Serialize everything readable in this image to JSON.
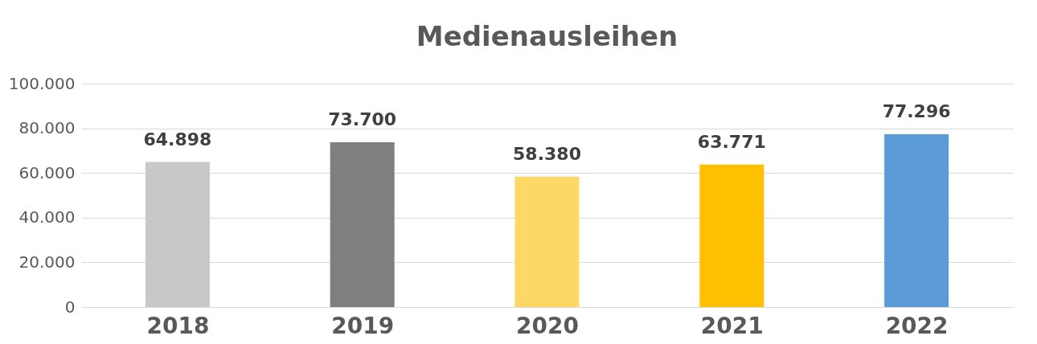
{
  "chart_data": {
    "type": "bar",
    "title": "Medienausleihen",
    "categories": [
      "2018",
      "2019",
      "2020",
      "2021",
      "2022"
    ],
    "values": [
      64898,
      73700,
      58380,
      63771,
      77296
    ],
    "value_labels": [
      "64.898",
      "73.700",
      "58.380",
      "63.771",
      "77.296"
    ],
    "colors": [
      "#c8c8c8",
      "#7f7f7f",
      "#fdd866",
      "#ffc000",
      "#5b9bd5"
    ],
    "ylim": [
      0,
      100000
    ],
    "yticks": [
      0,
      {
        "value": 20000,
        "label": "20.000"
      },
      {
        "value": 40000,
        "label": "40.000"
      },
      {
        "value": 60000,
        "label": "60.000"
      },
      {
        "value": 80000,
        "label": "80.000"
      },
      {
        "value": 100000,
        "label": "100.000"
      }
    ],
    "grid": "y"
  }
}
